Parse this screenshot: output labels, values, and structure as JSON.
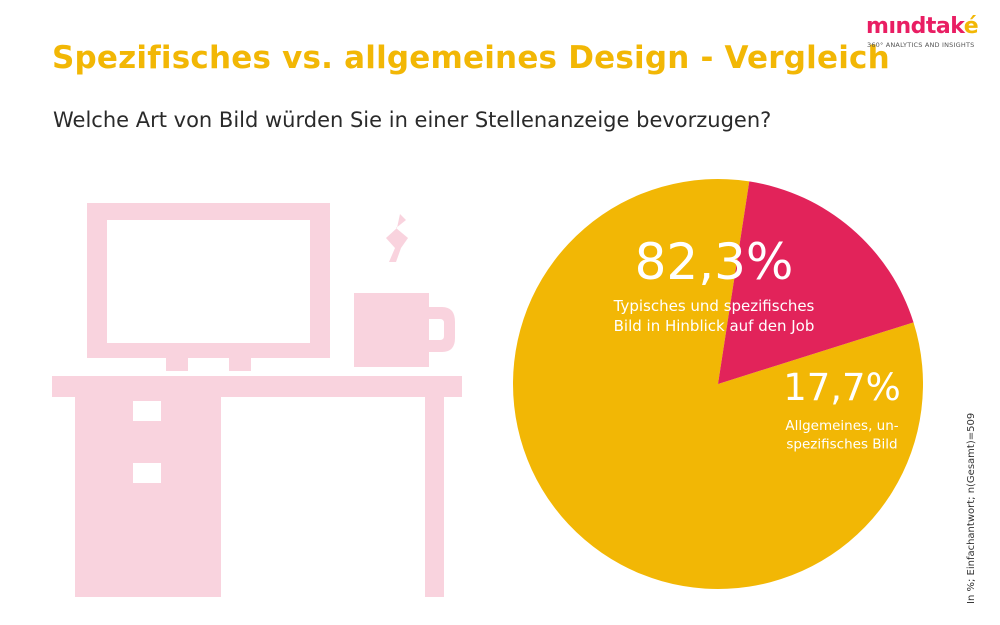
{
  "header": {
    "title": "Spezifisches vs. allgemeines Design - Vergleich",
    "subtitle": "Welche Art von Bild würden Sie in einer Stellenanzeige bevorzugen?"
  },
  "logo": {
    "name": "mindtake",
    "tagline": "360° ANALYTICS AND INSIGHTS"
  },
  "illustration": {
    "icon": "desk-with-monitor-and-coffee-icon",
    "color": "#f9d3de"
  },
  "footnote": "In %; Einfachantwort; n(Gesamt)=509",
  "colors": {
    "title": "#f2b705",
    "slice_1": "#f2b705",
    "slice_2": "#e2235a",
    "label": "#ffffff"
  },
  "chart_data": {
    "type": "pie",
    "title": "",
    "slices": [
      {
        "label_lines": [
          "Typisches und spezifisches",
          "Bild in Hinblick auf den Job"
        ],
        "value": 82.3,
        "value_label": "82,3%"
      },
      {
        "label_lines": [
          "Allgemeines, un-",
          "spezifisches Bild"
        ],
        "value": 17.7,
        "value_label": "17,7%"
      }
    ],
    "legend": "none"
  }
}
